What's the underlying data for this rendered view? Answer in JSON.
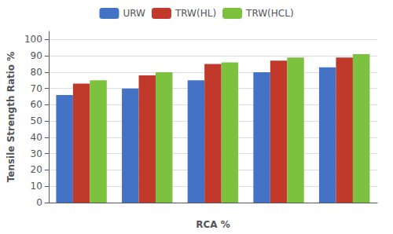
{
  "chart_data": {
    "type": "bar",
    "categories": [
      null,
      null,
      null,
      null,
      null
    ],
    "series": [
      {
        "name": "URW",
        "color": "#4472C4",
        "values": [
          66,
          70,
          75,
          80,
          83
        ]
      },
      {
        "name": "TRW(HL)",
        "color": "#C0392B",
        "values": [
          73,
          78,
          85,
          87,
          89
        ]
      },
      {
        "name": "TRW(HCL)",
        "color": "#7DC23E",
        "values": [
          75,
          80,
          86,
          89,
          91
        ]
      }
    ],
    "xlabel": "RCA %",
    "ylabel": "Tensile Strength Ratio %",
    "ylim": [
      0,
      105
    ],
    "yticks": [
      0,
      10,
      20,
      30,
      40,
      50,
      60,
      70,
      80,
      90,
      100
    ],
    "grid": true,
    "legend": "top"
  }
}
